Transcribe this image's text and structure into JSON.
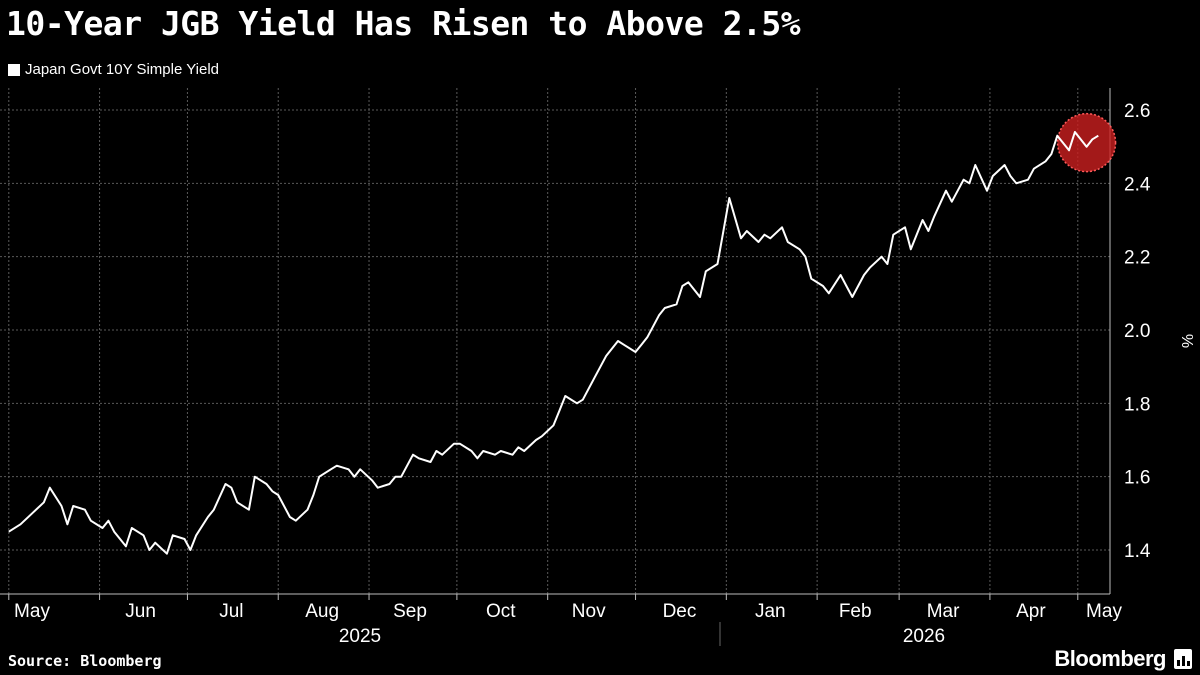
{
  "title": "10-Year JGB Yield Has Risen to Above 2.5%",
  "source": "Source: Bloomberg",
  "brand": "Bloomberg",
  "colors": {
    "background": "#000000",
    "line": "#ffffff",
    "grid": "#5a5a5a",
    "highlight": "#cc1f1f"
  },
  "chart_data": {
    "type": "line",
    "title": "10-Year JGB Yield Has Risen to Above 2.5%",
    "xlabel": "",
    "ylabel": "%",
    "ylim": [
      1.28,
      2.66
    ],
    "yticks": [
      1.4,
      1.6,
      1.8,
      2.0,
      2.2,
      2.4,
      2.6
    ],
    "ytick_labels": [
      "1.4",
      "1.6",
      "1.8",
      "2.0",
      "2.2",
      "2.4",
      "2.6"
    ],
    "x_axis": {
      "months": [
        "May",
        "Jun",
        "Jul",
        "Aug",
        "Sep",
        "Oct",
        "Nov",
        "Dec",
        "Jan",
        "Feb",
        "Mar",
        "Apr",
        "May"
      ],
      "years": [
        "2025",
        "2026"
      ]
    },
    "grid": true,
    "legend": "top-left",
    "highlight": "last values circled",
    "series": [
      {
        "name": "Japan Govt 10Y Simple Yield",
        "x": [
          "2025-05-01",
          "2025-05-05",
          "2025-05-09",
          "2025-05-13",
          "2025-05-15",
          "2025-05-19",
          "2025-05-21",
          "2025-05-23",
          "2025-05-27",
          "2025-05-29",
          "2025-06-02",
          "2025-06-04",
          "2025-06-06",
          "2025-06-10",
          "2025-06-12",
          "2025-06-16",
          "2025-06-18",
          "2025-06-20",
          "2025-06-24",
          "2025-06-26",
          "2025-06-30",
          "2025-07-02",
          "2025-07-04",
          "2025-07-08",
          "2025-07-10",
          "2025-07-14",
          "2025-07-16",
          "2025-07-18",
          "2025-07-22",
          "2025-07-24",
          "2025-07-28",
          "2025-07-30",
          "2025-08-01",
          "2025-08-05",
          "2025-08-07",
          "2025-08-11",
          "2025-08-13",
          "2025-08-15",
          "2025-08-19",
          "2025-08-21",
          "2025-08-25",
          "2025-08-27",
          "2025-08-29",
          "2025-09-02",
          "2025-09-04",
          "2025-09-08",
          "2025-09-10",
          "2025-09-12",
          "2025-09-16",
          "2025-09-18",
          "2025-09-22",
          "2025-09-24",
          "2025-09-26",
          "2025-09-30",
          "2025-10-02",
          "2025-10-06",
          "2025-10-08",
          "2025-10-10",
          "2025-10-14",
          "2025-10-16",
          "2025-10-20",
          "2025-10-22",
          "2025-10-24",
          "2025-10-28",
          "2025-10-30",
          "2025-11-03",
          "2025-11-05",
          "2025-11-07",
          "2025-11-11",
          "2025-11-13",
          "2025-11-17",
          "2025-11-19",
          "2025-11-21",
          "2025-11-25",
          "2025-11-27",
          "2025-12-01",
          "2025-12-03",
          "2025-12-05",
          "2025-12-09",
          "2025-12-11",
          "2025-12-15",
          "2025-12-17",
          "2025-12-19",
          "2025-12-23",
          "2025-12-25",
          "2025-12-29",
          "2026-01-02",
          "2026-01-06",
          "2026-01-08",
          "2026-01-12",
          "2026-01-14",
          "2026-01-16",
          "2026-01-20",
          "2026-01-22",
          "2026-01-26",
          "2026-01-28",
          "2026-01-30",
          "2026-02-03",
          "2026-02-05",
          "2026-02-09",
          "2026-02-11",
          "2026-02-13",
          "2026-02-17",
          "2026-02-19",
          "2026-02-23",
          "2026-02-25",
          "2026-02-27",
          "2026-03-03",
          "2026-03-05",
          "2026-03-09",
          "2026-03-11",
          "2026-03-13",
          "2026-03-17",
          "2026-03-19",
          "2026-03-23",
          "2026-03-25",
          "2026-03-27",
          "2026-03-31",
          "2026-04-02",
          "2026-04-06",
          "2026-04-08",
          "2026-04-10",
          "2026-04-14",
          "2026-04-16",
          "2026-04-20",
          "2026-04-22",
          "2026-04-24",
          "2026-04-28",
          "2026-04-30",
          "2026-05-04",
          "2026-05-06",
          "2026-05-08"
        ],
        "values": [
          1.45,
          1.47,
          1.5,
          1.53,
          1.57,
          1.52,
          1.47,
          1.52,
          1.51,
          1.48,
          1.46,
          1.48,
          1.45,
          1.41,
          1.46,
          1.44,
          1.4,
          1.42,
          1.39,
          1.44,
          1.43,
          1.4,
          1.44,
          1.49,
          1.51,
          1.58,
          1.57,
          1.53,
          1.51,
          1.6,
          1.58,
          1.56,
          1.55,
          1.49,
          1.48,
          1.51,
          1.55,
          1.6,
          1.62,
          1.63,
          1.62,
          1.6,
          1.62,
          1.59,
          1.57,
          1.58,
          1.6,
          1.6,
          1.66,
          1.65,
          1.64,
          1.67,
          1.66,
          1.69,
          1.69,
          1.67,
          1.65,
          1.67,
          1.66,
          1.67,
          1.66,
          1.68,
          1.67,
          1.7,
          1.71,
          1.74,
          1.78,
          1.82,
          1.8,
          1.81,
          1.87,
          1.9,
          1.93,
          1.97,
          1.96,
          1.94,
          1.96,
          1.98,
          2.04,
          2.06,
          2.07,
          2.12,
          2.13,
          2.09,
          2.16,
          2.18,
          2.36,
          2.25,
          2.27,
          2.24,
          2.26,
          2.25,
          2.28,
          2.24,
          2.22,
          2.2,
          2.14,
          2.12,
          2.1,
          2.15,
          2.12,
          2.09,
          2.15,
          2.17,
          2.2,
          2.18,
          2.26,
          2.28,
          2.22,
          2.3,
          2.27,
          2.31,
          2.38,
          2.35,
          2.41,
          2.4,
          2.45,
          2.38,
          2.42,
          2.45,
          2.42,
          2.4,
          2.41,
          2.44,
          2.46,
          2.48,
          2.53,
          2.49,
          2.54,
          2.5,
          2.52,
          2.53
        ]
      }
    ]
  }
}
